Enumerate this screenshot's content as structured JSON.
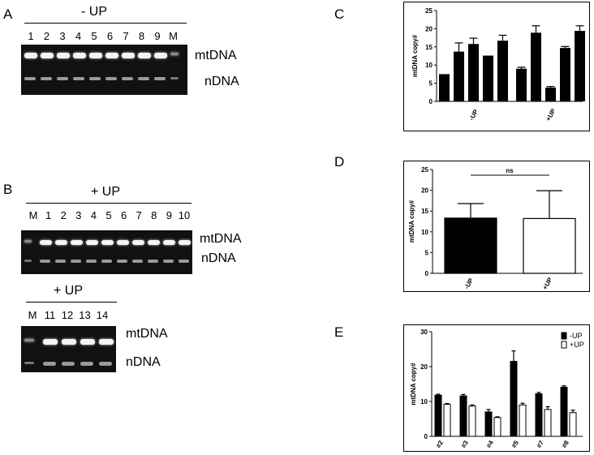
{
  "panels": {
    "A": {
      "letter": "A",
      "title": "- UP",
      "lanes": [
        "1",
        "2",
        "3",
        "4",
        "5",
        "6",
        "7",
        "8",
        "9",
        "M"
      ],
      "band_top": "mtDNA",
      "band_bottom": "nDNA"
    },
    "B": {
      "letter": "B",
      "title1": "+ UP",
      "lanes1": [
        "M",
        "1",
        "2",
        "3",
        "4",
        "5",
        "6",
        "7",
        "8",
        "9",
        "10"
      ],
      "title2": "+ UP",
      "lanes2": [
        "M",
        "11",
        "12",
        "13",
        "14"
      ],
      "band_top": "mtDNA",
      "band_bottom": "nDNA"
    },
    "C": {
      "letter": "C"
    },
    "D": {
      "letter": "D",
      "sig": "ns"
    },
    "E": {
      "letter": "E"
    }
  },
  "chart_data": [
    {
      "id": "C",
      "type": "bar",
      "ylabel": "mtDNA copy#",
      "ylim": [
        0,
        25
      ],
      "yticks": [
        0,
        5,
        10,
        15,
        20,
        25
      ],
      "groups": [
        "-UP",
        "+UP"
      ],
      "values": [
        [
          7.5,
          13.7,
          15.8,
          12.6,
          16.7
        ],
        [
          9.0,
          18.9,
          3.8,
          14.7,
          19.4
        ]
      ],
      "errors": [
        [
          0,
          2.4,
          1.6,
          0,
          1.5
        ],
        [
          0.4,
          1.9,
          0.3,
          0.4,
          1.4
        ]
      ],
      "color": "#000000"
    },
    {
      "id": "D",
      "type": "bar",
      "ylabel": "mtDNA copy#",
      "ylim": [
        0,
        25
      ],
      "yticks": [
        0,
        5,
        10,
        15,
        20,
        25
      ],
      "categories": [
        "-UP",
        "+UP"
      ],
      "values": [
        13.3,
        13.2
      ],
      "errors": [
        3.5,
        6.7
      ],
      "colors": [
        "#000000",
        "#ffffff"
      ]
    },
    {
      "id": "E",
      "type": "bar",
      "ylabel": "mtDNA copy#",
      "ylim": [
        0,
        30
      ],
      "yticks": [
        0,
        10,
        20,
        30
      ],
      "categories": [
        "#2",
        "#3",
        "#4",
        "#5",
        "#7",
        "#8"
      ],
      "series": [
        {
          "name": "-UP",
          "values": [
            11.8,
            11.6,
            7.0,
            21.5,
            12.2,
            14.1
          ],
          "errors": [
            0.3,
            0.4,
            0.7,
            3.0,
            0.4,
            0.4
          ],
          "color": "#000000"
        },
        {
          "name": "+UP",
          "values": [
            9.2,
            8.7,
            5.4,
            9.0,
            7.7,
            6.8
          ],
          "errors": [
            0.2,
            0.3,
            0.2,
            0.5,
            0.8,
            0.7
          ],
          "color": "#ffffff"
        }
      ],
      "legend_position": "top-right"
    }
  ]
}
